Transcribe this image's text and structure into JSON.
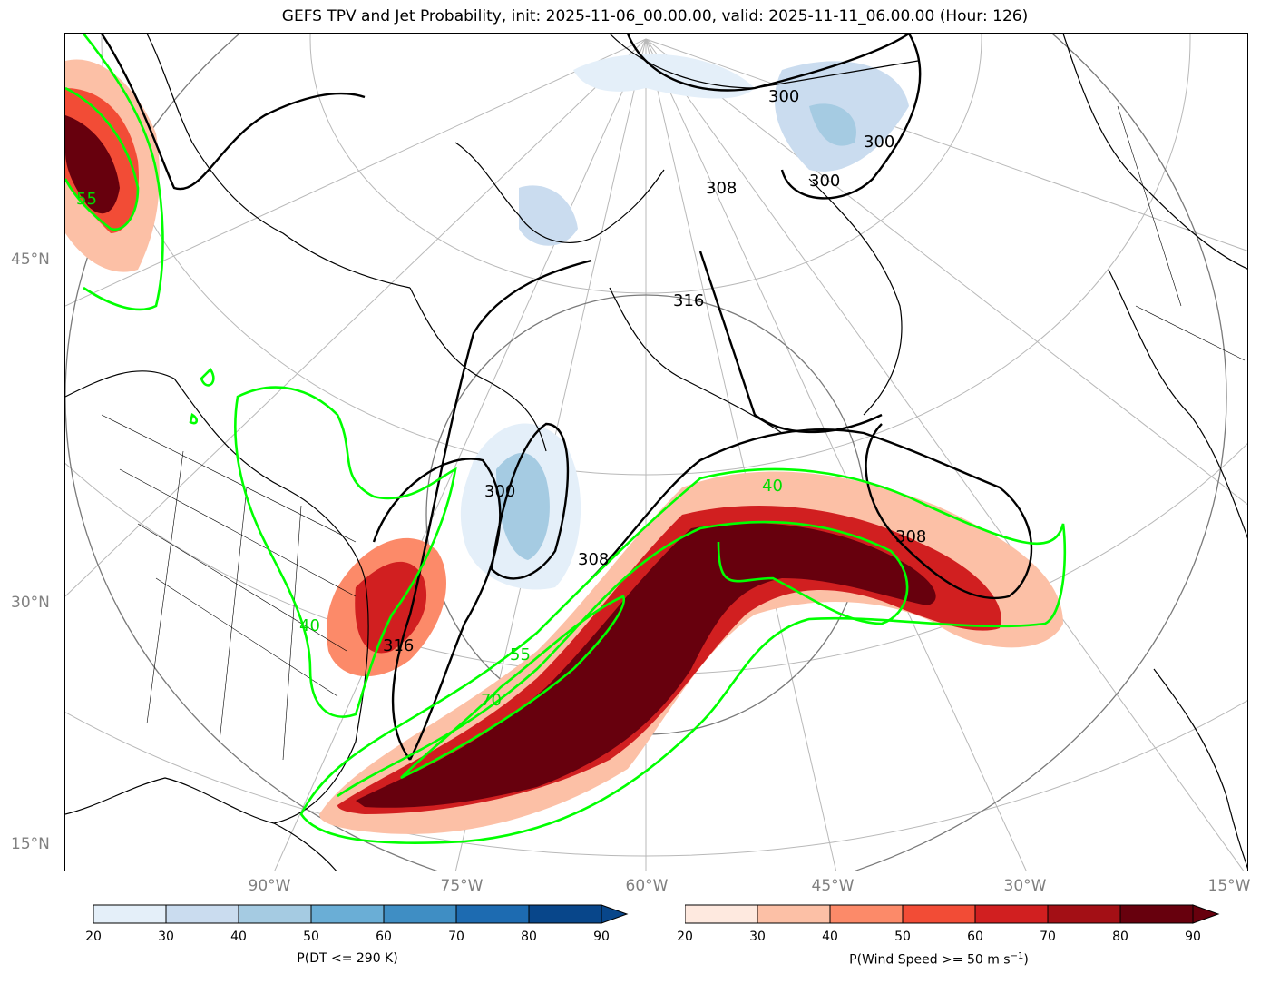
{
  "title": "GEFS TPV and Jet Probability, init: 2025-11-06_00.00.00, valid: 2025-11-11_06.00.00 (Hour: 126)",
  "map": {
    "lat_labels": [
      "45°N",
      "30°N",
      "15°N"
    ],
    "lon_labels": [
      "90°W",
      "75°W",
      "60°W",
      "45°W",
      "30°W",
      "15°W"
    ],
    "theta_contour_labels": [
      "300",
      "300",
      "300",
      "308",
      "316",
      "308",
      "316",
      "300",
      "308"
    ],
    "jet_contour_labels": [
      "55",
      "40",
      "40",
      "55",
      "70"
    ],
    "colors": {
      "jet_prob_outline": "#00ff00",
      "theta": "#000000",
      "coast": "#000000",
      "grid": "#b0b0b0"
    }
  },
  "colorbar_dt": {
    "label": "P(DT <= 290 K)",
    "ticks": [
      "20",
      "30",
      "40",
      "50",
      "60",
      "70",
      "80",
      "90"
    ],
    "colors": [
      "#e4eff9",
      "#cadcef",
      "#a5cbe2",
      "#6aaed6",
      "#3f8ec4",
      "#1d6bb1",
      "#08468a"
    ],
    "extend_color": "#08468a"
  },
  "colorbar_wind": {
    "label": "P(Wind Speed >= 50 m s",
    "label_sup": "−1",
    "label_end": ")",
    "ticks": [
      "20",
      "30",
      "40",
      "50",
      "60",
      "70",
      "80",
      "90"
    ],
    "colors": [
      "#fee9df",
      "#fcc0a6",
      "#fc8a69",
      "#f24c36",
      "#d11f20",
      "#a30f15",
      "#67000d"
    ],
    "extend_color": "#67000d"
  }
}
